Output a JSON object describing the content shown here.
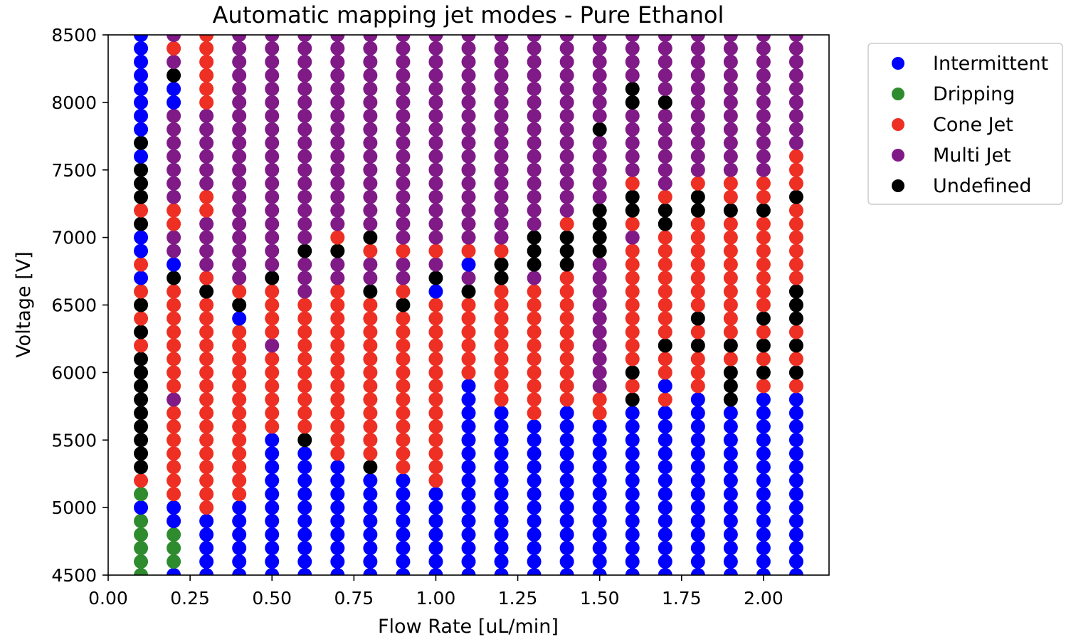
{
  "chart_data": {
    "type": "scatter",
    "title": "Automatic mapping jet modes - Pure Ethanol",
    "xlabel": "Flow Rate [uL/min]",
    "ylabel": "Voltage [V]",
    "xlim": [
      0.0,
      2.2
    ],
    "ylim": [
      4500,
      8500
    ],
    "xticks": [
      0.0,
      0.25,
      0.5,
      0.75,
      1.0,
      1.25,
      1.5,
      1.75,
      2.0
    ],
    "xtick_labels": [
      "0.00",
      "0.25",
      "0.50",
      "0.75",
      "1.00",
      "1.25",
      "1.50",
      "1.75",
      "2.00"
    ],
    "yticks": [
      4500,
      5000,
      5500,
      6000,
      6500,
      7000,
      7500,
      8000,
      8500
    ],
    "ytick_labels": [
      "4500",
      "5000",
      "5500",
      "6000",
      "6500",
      "7000",
      "7500",
      "8000",
      "8500"
    ],
    "grid": false,
    "legend_position": "outside-right-top",
    "voltage_start": 4500,
    "voltage_step": 100,
    "modes": [
      {
        "code": "I",
        "name": "Intermittent",
        "color": "#0000ff"
      },
      {
        "code": "D",
        "name": "Dripping",
        "color": "#2e8b2e"
      },
      {
        "code": "C",
        "name": "Cone Jet",
        "color": "#ee2f23"
      },
      {
        "code": "M",
        "name": "Multi Jet",
        "color": "#7f1a87"
      },
      {
        "code": "U",
        "name": "Undefined",
        "color": "#000000"
      }
    ],
    "columns": [
      {
        "x": 0.1,
        "modes": "DDDDDIDCUUUUUUUUUCUCUCICIIUCUUUIUIIIIIIIIIIII"
      },
      {
        "x": 0.2,
        "modes": "IDDDIICCCCCCCMCCCCCCCCUIMMCCMMMMMMMIIUMCMMUMMMU"
      },
      {
        "x": 0.3,
        "modes": "IIIIICCCCCCCCCCCCCCCCUCMMMMCCMMMMMMCCCCCCCCCCCC"
      },
      {
        "x": 0.4,
        "modes": "IIIIIICCCCCCCCCCCCCIUCMMMMMMMMMMMMMMMMMMMMMMMMM"
      },
      {
        "x": 0.5,
        "modes": "IIIIIIIIIIICCCCCCMCCCCUMMMMMMMMMMMMMMMMMMMMMMMMM"
      },
      {
        "x": 0.6,
        "modes": "IIIIIIIIIIUCCCCCCCCCCMMMUMMMMMMMMMMMMMMMMMMMMMMM"
      },
      {
        "x": 0.7,
        "modes": "IIIIIIIIICCCCCCCCCCCCCMMUCMMMMMMMMMMMMMMMMMMMMMM"
      },
      {
        "x": 0.8,
        "modes": "IIIIIIIIUCCCCCCCCCCCCUMMCUMMMMMMMMMMMMMMMMMMMMMM"
      },
      {
        "x": 0.9,
        "modes": "IIIIIIIICCCCCCCCCCCCUCMMCMMMMMMMMMMMMMMMMMMMMMMM"
      },
      {
        "x": 1.0,
        "modes": "IIIIIIICCCCCCCCCCCCCCIUMCMMMMMMMMMMMMMMMMMMMMMMM"
      },
      {
        "x": 1.1,
        "modes": "IIIIIIIIIIIIIIICCCCCCUMICMMMMMMMMMMMMMMMMMMMMMMM"
      },
      {
        "x": 1.2,
        "modes": "IIIIIIIIIIIIICCCCCCCCCUUCMMMMMMMMMMMMMMMMMMMMMMM"
      },
      {
        "x": 1.3,
        "modes": "IIIIIIIIIIIICCCCCCCCCCMUUUMMMMMMMMMMMMMMMMMMMMMM"
      },
      {
        "x": 1.4,
        "modes": "IIIIIIIIIIIIICCCCCCCCCCUUUCMMMMMMMMMMMMMMMMMMMMM"
      },
      {
        "x": 1.5,
        "modes": "IIIIIIIIIIIICCMMMMMMMMMMUUUUMMMMMUMMMMMMMMMMMMMM"
      },
      {
        "x": 1.6,
        "modes": "IIIIIIIIIIIIIUCUCCCCCCCCCMCUUCMMMMMUUMMMMMMMMMMM"
      },
      {
        "x": 1.7,
        "modes": "IIIIIIIIIIIIICICCUCCCCCCCCUUCMMMMMMUMMMMMMMMMMMM"
      },
      {
        "x": 1.8,
        "modes": "IIIIIIIIIIIIIICCCUCUCCCCCCCUUCMMMMMMMMMMMMMMMMMM"
      },
      {
        "x": 1.9,
        "modes": "IIIIIIIIIIIIIUUUCUCCCCCCCCCUCCMMMMMMMMMMMMMMMMMM"
      },
      {
        "x": 2.0,
        "modes": "IIIIIIIIIIIIIICUCUCUCCCCCCCUCCMMMMMMMMMMMMMMMMMM"
      },
      {
        "x": 2.1,
        "modes": "IIIIIIIIIIIIIICUCUCUUUCCCCCCUCCCMMMMMMMMMMMMMMMM"
      }
    ]
  }
}
